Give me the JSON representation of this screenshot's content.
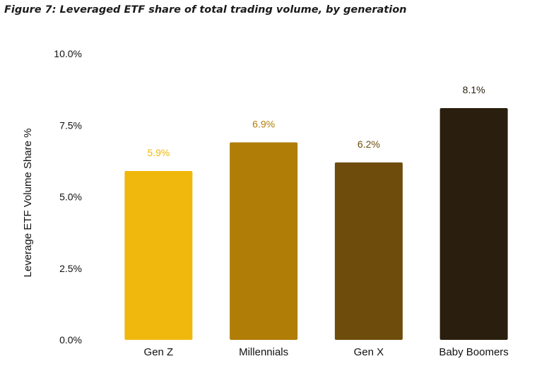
{
  "figure_title": "Figure 7: Leveraged ETF share of total trading volume, by generation",
  "chart_data": {
    "type": "bar",
    "title": "",
    "xlabel": "",
    "ylabel": "Leverage ETF Volume Share %",
    "ylim": [
      0,
      10
    ],
    "yticks": [
      0,
      2.5,
      5.0,
      7.5,
      10.0
    ],
    "ytick_labels": [
      "0.0%",
      "2.5%",
      "5.0%",
      "7.5%",
      "10.0%"
    ],
    "categories": [
      "Gen Z",
      "Millennials",
      "Gen X",
      "Baby Boomers"
    ],
    "values": [
      5.9,
      6.9,
      6.2,
      8.1
    ],
    "data_labels": [
      "5.9%",
      "6.9%",
      "6.2%",
      "8.1%"
    ],
    "bar_colors": [
      "#F0B80D",
      "#B07D07",
      "#6E4C0B",
      "#2A1F0E"
    ],
    "label_colors": [
      "#F0B80D",
      "#B07D07",
      "#6E4C0B",
      "#2A1F0E"
    ],
    "grid": false,
    "legend": "none"
  }
}
